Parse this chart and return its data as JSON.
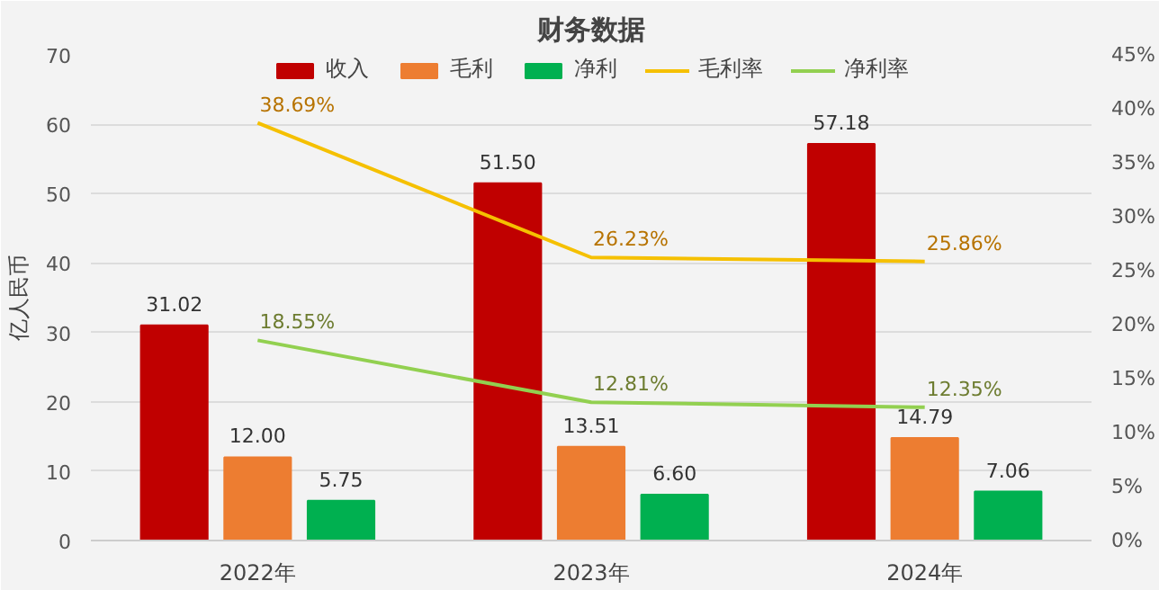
{
  "chart_data": {
    "type": "bar",
    "title": "财务数据",
    "ylabel": "亿人民币",
    "categories": [
      "2022年",
      "2023年",
      "2024年"
    ],
    "series": [
      {
        "name": "收入",
        "color": "#c00000",
        "values": [
          31.02,
          51.5,
          57.18
        ],
        "value_labels": [
          "31.02",
          "51.50",
          "57.18"
        ]
      },
      {
        "name": "毛利",
        "color": "#ed7d31",
        "values": [
          12.0,
          13.51,
          14.79
        ],
        "value_labels": [
          "12.00",
          "13.51",
          "14.79"
        ]
      },
      {
        "name": "净利",
        "color": "#00b050",
        "values": [
          5.75,
          6.6,
          7.06
        ],
        "value_labels": [
          "5.75",
          "6.60",
          "7.06"
        ]
      },
      {
        "name": "毛利率",
        "type": "line",
        "axis": "y2",
        "color": "#f5c000",
        "values": [
          38.69,
          26.23,
          25.86
        ],
        "value_labels": [
          "38.69%",
          "26.23%",
          "25.86%"
        ]
      },
      {
        "name": "净利率",
        "type": "line",
        "axis": "y2",
        "color": "#92d050",
        "values": [
          18.55,
          12.81,
          12.35
        ],
        "value_labels": [
          "18.55%",
          "12.81%",
          "12.35%"
        ]
      }
    ],
    "ylim": [
      0,
      70
    ],
    "yticks": [
      0,
      10,
      20,
      30,
      40,
      50,
      60,
      70
    ],
    "y2lim": [
      0,
      45
    ],
    "y2ticks": [
      {
        "value": 0,
        "label": "0%"
      },
      {
        "value": 5,
        "label": "5%"
      },
      {
        "value": 10,
        "label": "10%"
      },
      {
        "value": 15,
        "label": "15%"
      },
      {
        "value": 20,
        "label": "20%"
      },
      {
        "value": 25,
        "label": "25%"
      },
      {
        "value": 30,
        "label": "30%"
      },
      {
        "value": 35,
        "label": "35%"
      },
      {
        "value": 40,
        "label": "40%"
      },
      {
        "value": 45,
        "label": "45%"
      }
    ],
    "grid": "y",
    "legend": "top"
  }
}
